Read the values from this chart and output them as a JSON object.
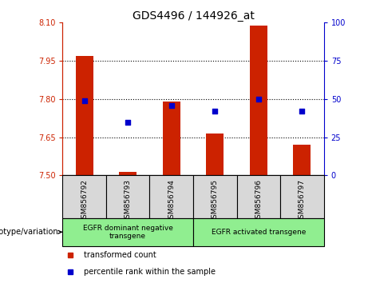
{
  "title": "GDS4496 / 144926_at",
  "samples": [
    "GSM856792",
    "GSM856793",
    "GSM856794",
    "GSM856795",
    "GSM856796",
    "GSM856797"
  ],
  "bar_values": [
    7.97,
    7.515,
    7.79,
    7.665,
    8.09,
    7.62
  ],
  "percentile_values": [
    49,
    35,
    46,
    42,
    50,
    42
  ],
  "bar_base": 7.5,
  "left_ylim": [
    7.5,
    8.1
  ],
  "right_ylim": [
    0,
    100
  ],
  "left_yticks": [
    7.5,
    7.65,
    7.8,
    7.95,
    8.1
  ],
  "right_yticks": [
    0,
    25,
    50,
    75,
    100
  ],
  "hlines": [
    7.65,
    7.8,
    7.95
  ],
  "bar_color": "#cc2200",
  "dot_color": "#0000cc",
  "group1_label": "EGFR dominant negative\ntransgene",
  "group2_label": "EGFR activated transgene",
  "group1_samples": [
    0,
    1,
    2
  ],
  "group2_samples": [
    3,
    4,
    5
  ],
  "legend_bar_label": "transformed count",
  "legend_dot_label": "percentile rank within the sample",
  "genotype_label": "genotype/variation",
  "group_bg_color": "#90ee90",
  "sample_bg_color": "#d8d8d8",
  "bar_width": 0.4,
  "title_fontsize": 10,
  "tick_fontsize": 7,
  "label_fontsize": 6.5,
  "legend_fontsize": 7,
  "genotype_fontsize": 7
}
